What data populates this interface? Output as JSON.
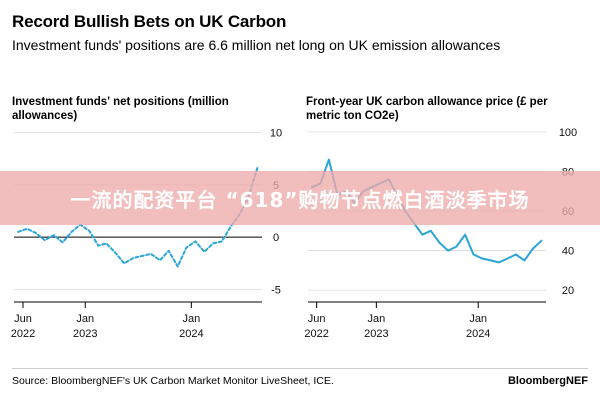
{
  "header": {
    "title": "Record Bullish Bets on UK Carbon",
    "subtitle": "Investment funds' positions are 6.6 million net long on UK emission allowances"
  },
  "banner": {
    "text": "一流的配资平台 “618”购物节点燃白酒淡季市场"
  },
  "footer": {
    "source": "Source: BloombergNEF's UK Carbon Market Monitor LiveSheet, ICE.",
    "brand": "BloombergNEF"
  },
  "colors": {
    "series": "#2aa5d8",
    "zero_line": "#000000",
    "grid": "#d9d9d9"
  },
  "chart_data": [
    {
      "type": "line",
      "title": "Investment funds' net positions (million allowances)",
      "y_axis_side": "right",
      "ylim": [
        -6,
        11
      ],
      "yticks": [
        10,
        5,
        0,
        -5
      ],
      "xlim": [
        "2022-05-01",
        "2024-08-31"
      ],
      "xticks": [
        {
          "date": "2022-06-01",
          "label": [
            "Jun",
            "2022"
          ]
        },
        {
          "date": "2023-01-01",
          "label": [
            "Jan",
            "2023"
          ]
        },
        {
          "date": "2024-01-01",
          "label": [
            "Jan",
            "2024"
          ]
        }
      ],
      "dashed": true,
      "series": [
        {
          "x": [
            "2022-05-15",
            "2022-06-15",
            "2022-07-15",
            "2022-08-15",
            "2022-09-15",
            "2022-10-15",
            "2022-11-15",
            "2022-12-15",
            "2023-01-15",
            "2023-02-15",
            "2023-03-15",
            "2023-04-15",
            "2023-05-15",
            "2023-06-15",
            "2023-07-15",
            "2023-08-15",
            "2023-09-15",
            "2023-10-15",
            "2023-11-15",
            "2023-12-15",
            "2024-01-15",
            "2024-02-15",
            "2024-03-15",
            "2024-04-15",
            "2024-05-15",
            "2024-06-15",
            "2024-07-15",
            "2024-08-15"
          ],
          "values": [
            0.5,
            0.8,
            0.4,
            -0.3,
            0.2,
            -0.5,
            0.5,
            1.2,
            0.6,
            -0.8,
            -0.6,
            -1.5,
            -2.5,
            -2.0,
            -1.8,
            -1.6,
            -2.2,
            -1.3,
            -2.8,
            -1.0,
            -0.4,
            -1.4,
            -0.6,
            -0.4,
            1.0,
            2.2,
            3.8,
            6.6
          ]
        }
      ]
    },
    {
      "type": "line",
      "title": "Front-year UK carbon allowance price (£ per metric ton CO2e)",
      "y_axis_side": "right",
      "ylim": [
        15,
        105
      ],
      "yticks": [
        100,
        80,
        60,
        40,
        20
      ],
      "xlim": [
        "2022-05-01",
        "2024-08-31"
      ],
      "xticks": [
        {
          "date": "2022-06-01",
          "label": [
            "Jun",
            "2022"
          ]
        },
        {
          "date": "2023-01-01",
          "label": [
            "Jan",
            "2023"
          ]
        },
        {
          "date": "2024-01-01",
          "label": [
            "Jan",
            "2024"
          ]
        }
      ],
      "dashed": false,
      "series": [
        {
          "x": [
            "2022-05-15",
            "2022-06-15",
            "2022-07-15",
            "2022-08-15",
            "2022-09-15",
            "2022-10-15",
            "2022-11-15",
            "2022-12-15",
            "2023-01-15",
            "2023-02-15",
            "2023-03-15",
            "2023-04-15",
            "2023-05-15",
            "2023-06-15",
            "2023-07-15",
            "2023-08-15",
            "2023-09-15",
            "2023-10-15",
            "2023-11-15",
            "2023-12-15",
            "2024-01-15",
            "2024-02-15",
            "2024-03-15",
            "2024-04-15",
            "2024-05-15",
            "2024-06-15",
            "2024-07-15",
            "2024-08-15"
          ],
          "values": [
            72,
            74,
            86,
            68,
            70,
            64,
            70,
            72,
            74,
            76,
            68,
            60,
            54,
            48,
            50,
            44,
            40,
            42,
            48,
            38,
            36,
            35,
            34,
            36,
            38,
            35,
            41,
            45
          ]
        }
      ]
    }
  ]
}
